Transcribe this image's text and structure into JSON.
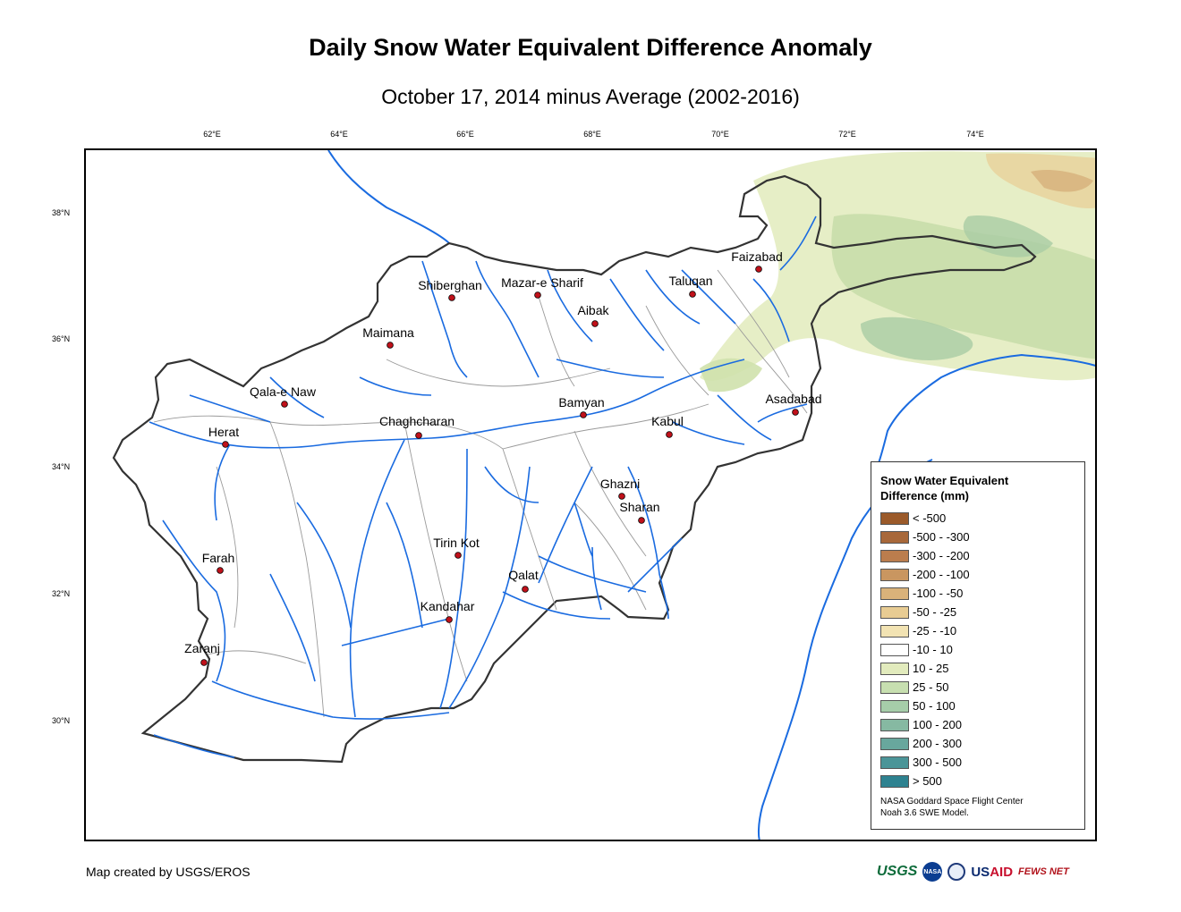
{
  "title": "Daily Snow Water Equivalent Difference Anomaly",
  "subtitle": "October 17, 2014 minus Average (2002-2016)",
  "lon_ticks": [
    "62°E",
    "64°E",
    "66°E",
    "68°E",
    "70°E",
    "72°E",
    "74°E"
  ],
  "lat_ticks": [
    "38°N",
    "36°N",
    "34°N",
    "32°N",
    "30°N"
  ],
  "cities": [
    {
      "name": "Faizabad"
    },
    {
      "name": "Shiberghan"
    },
    {
      "name": "Mazar-e Sharif"
    },
    {
      "name": "Taluqan"
    },
    {
      "name": "Aibak"
    },
    {
      "name": "Maimana"
    },
    {
      "name": "Qala-e Naw"
    },
    {
      "name": "Asadabad"
    },
    {
      "name": "Bamyan"
    },
    {
      "name": "Herat"
    },
    {
      "name": "Chaghcharan"
    },
    {
      "name": "Kabul"
    },
    {
      "name": "Ghazni"
    },
    {
      "name": "Sharan"
    },
    {
      "name": "Tirin Kot"
    },
    {
      "name": "Farah"
    },
    {
      "name": "Qalat"
    },
    {
      "name": "Kandahar"
    },
    {
      "name": "Zaranj"
    }
  ],
  "legend": {
    "title_line1": "Snow Water Equivalent",
    "title_line2": "Difference (mm)",
    "items": [
      {
        "label": "< -500",
        "color": "#9b5a2a"
      },
      {
        "label": "-500 - -300",
        "color": "#a8683a"
      },
      {
        "label": "-300 - -200",
        "color": "#bb7d4d"
      },
      {
        "label": "-200 - -100",
        "color": "#c99660"
      },
      {
        "label": "-100 - -50",
        "color": "#d9b27a"
      },
      {
        "label": "-50 - -25",
        "color": "#e8cc93"
      },
      {
        "label": "-25 - -10",
        "color": "#f2e3b3"
      },
      {
        "label": "-10 - 10",
        "color": "#ffffff"
      },
      {
        "label": "10 - 25",
        "color": "#e2ebbd"
      },
      {
        "label": "25 - 50",
        "color": "#c7dfb0"
      },
      {
        "label": "50 - 100",
        "color": "#a6cda9"
      },
      {
        "label": "100 - 200",
        "color": "#86b9a2"
      },
      {
        "label": "200 - 300",
        "color": "#68a79d"
      },
      {
        "label": "300 - 500",
        "color": "#4b9598"
      },
      {
        "label": "> 500",
        "color": "#2e8290"
      }
    ],
    "credit_line1": "NASA Goddard Space Flight Center",
    "credit_line2": "Noah 3.6 SWE Model."
  },
  "footer": "Map created by USGS/EROS",
  "logos": {
    "usgs": "USGS",
    "nasa": "NASA",
    "usaid_us": "US",
    "usaid_aid": "AID",
    "fews": "FEWS NET"
  },
  "colors": {
    "river": "#1a6be0",
    "border": "#333333",
    "basin": "#9a9a9a",
    "city_dot": "#c0111a"
  }
}
